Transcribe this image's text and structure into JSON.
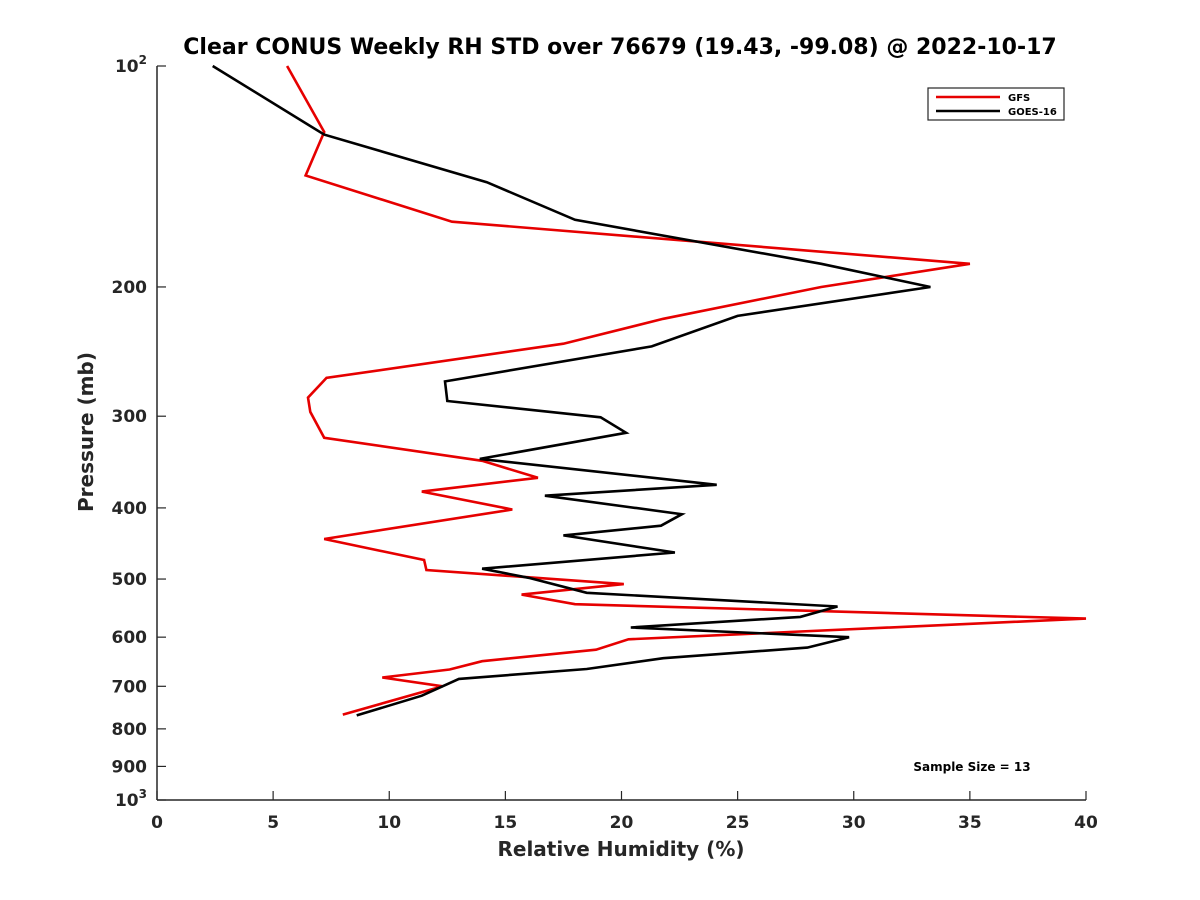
{
  "chart_data": {
    "type": "line",
    "title": "Clear CONUS Weekly RH STD over 76679 (19.43, -99.08) @ 2022-10-17",
    "xlabel": "Relative Humidity (%)",
    "ylabel": "Pressure (mb)",
    "xlim": [
      0,
      40
    ],
    "ylim": [
      100,
      1000
    ],
    "y_scale": "log",
    "y_reversed": true,
    "grid": false,
    "legend_position": "top-right",
    "x_ticks": [
      0,
      5,
      10,
      15,
      20,
      25,
      30,
      35,
      40
    ],
    "x_tick_labels": [
      "0",
      "5",
      "10",
      "15",
      "20",
      "25",
      "30",
      "35",
      "40"
    ],
    "y_ticks": [
      {
        "value": 100,
        "base": "10",
        "exp": "2"
      },
      {
        "value": 200,
        "label": "200"
      },
      {
        "value": 300,
        "label": "300"
      },
      {
        "value": 400,
        "label": "400"
      },
      {
        "value": 500,
        "label": "500"
      },
      {
        "value": 600,
        "label": "600"
      },
      {
        "value": 700,
        "label": "700"
      },
      {
        "value": 800,
        "label": "800"
      },
      {
        "value": 900,
        "label": "900"
      },
      {
        "value": 1000,
        "base": "10",
        "exp": "3"
      }
    ],
    "series": [
      {
        "name": "GFS",
        "color": "#e60000",
        "points": [
          [
            5.6,
            100
          ],
          [
            7.2,
            123
          ],
          [
            6.4,
            141
          ],
          [
            12.7,
            163
          ],
          [
            35.0,
            186
          ],
          [
            28.6,
            200
          ],
          [
            21.8,
            221
          ],
          [
            17.5,
            239
          ],
          [
            7.3,
            266
          ],
          [
            6.5,
            283
          ],
          [
            6.6,
            296
          ],
          [
            7.2,
            321
          ],
          [
            14.0,
            345
          ],
          [
            16.4,
            364
          ],
          [
            11.4,
            380
          ],
          [
            15.3,
            402
          ],
          [
            7.2,
            441
          ],
          [
            11.5,
            471
          ],
          [
            11.6,
            486
          ],
          [
            20.1,
            508
          ],
          [
            15.7,
            525
          ],
          [
            18.0,
            541
          ],
          [
            40.0,
            566
          ],
          [
            20.3,
            604
          ],
          [
            18.9,
            624
          ],
          [
            14.0,
            647
          ],
          [
            12.6,
            664
          ],
          [
            9.7,
            681
          ],
          [
            12.3,
            700
          ],
          [
            8.0,
            765
          ]
        ]
      },
      {
        "name": "GOES-16",
        "color": "#000000",
        "points": [
          [
            2.4,
            100
          ],
          [
            7.2,
            124
          ],
          [
            14.2,
            144
          ],
          [
            18.0,
            162
          ],
          [
            28.6,
            186
          ],
          [
            33.3,
            200
          ],
          [
            25.0,
            219
          ],
          [
            21.3,
            241
          ],
          [
            12.4,
            269
          ],
          [
            12.5,
            286
          ],
          [
            19.1,
            301
          ],
          [
            20.2,
            316
          ],
          [
            13.9,
            343
          ],
          [
            24.1,
            372
          ],
          [
            16.7,
            385
          ],
          [
            22.6,
            408
          ],
          [
            21.7,
            423
          ],
          [
            17.5,
            436
          ],
          [
            22.3,
            460
          ],
          [
            14.0,
            484
          ],
          [
            16.0,
            498
          ],
          [
            18.5,
            522
          ],
          [
            29.3,
            545
          ],
          [
            27.7,
            563
          ],
          [
            20.4,
            582
          ],
          [
            29.8,
            600
          ],
          [
            28.0,
            620
          ],
          [
            21.8,
            641
          ],
          [
            18.5,
            663
          ],
          [
            13.0,
            684
          ],
          [
            11.4,
            721
          ],
          [
            8.6,
            767
          ]
        ]
      }
    ],
    "annotations": [
      {
        "text": "Sample Size = 13"
      }
    ]
  }
}
